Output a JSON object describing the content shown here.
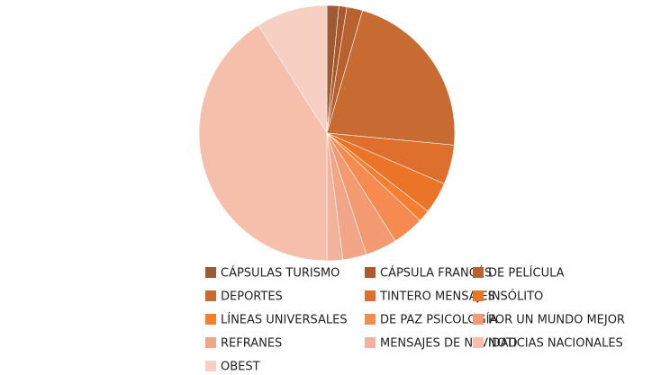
{
  "chart_data": {
    "type": "pie",
    "categories": [
      "CÁPSULAS TURISMO",
      "CÁPSULA FRANCÉS",
      "DE PELÍCULA",
      "DEPORTES",
      "TINTERO MENSAJES",
      "INSÓLITO",
      "LÍNEAS UNIVERSALES",
      "DE PAZ PSICOLOGÍA",
      "POR UN MUNDO MEJOR",
      "REFRANES",
      "MENSAJES DE NAVIDAD",
      "NOTICIAS NACIONALES",
      "OBEST"
    ],
    "values": [
      1.5,
      1,
      2,
      22,
      5,
      4,
      1.5,
      4,
      4,
      3,
      2,
      41,
      9
    ],
    "colors": [
      "#9c5b33",
      "#a9592c",
      "#b9622f",
      "#c86b33",
      "#de6f2c",
      "#ea7428",
      "#f57e30",
      "#f58b50",
      "#f39a73",
      "#f2a687",
      "#f3b29b",
      "#f5bfac",
      "#f8cfc3"
    ]
  }
}
